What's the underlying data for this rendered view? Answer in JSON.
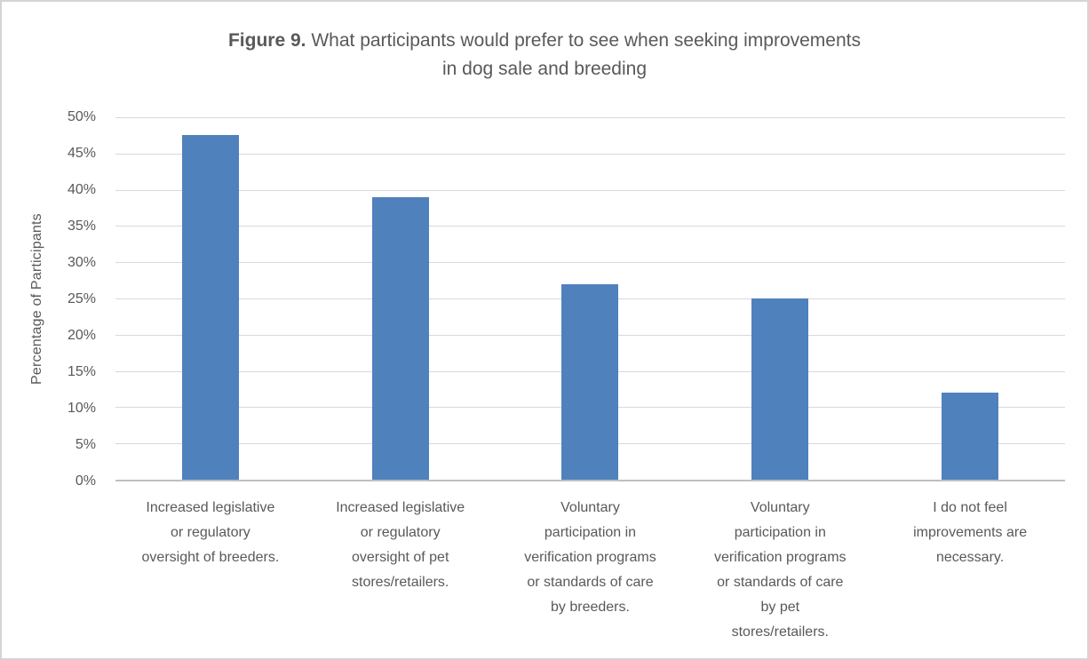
{
  "figure": {
    "label": "Figure 9.",
    "title_rest": " What participants would prefer to see when seeking improvements\nin dog sale and breeding"
  },
  "colors": {
    "text": "#595959",
    "gridline": "#d9d9d9",
    "axis": "#bfbfbf",
    "border": "#d4d4d4"
  },
  "chart_data": {
    "type": "bar",
    "title": "Figure 9. What participants would prefer to see when seeking improvements in dog sale and breeding",
    "xlabel": "",
    "ylabel": "Percentage of Participants",
    "unit": "%",
    "ylim": [
      0,
      50
    ],
    "ytick_step": 5,
    "yticks": [
      "50%",
      "45%",
      "40%",
      "35%",
      "30%",
      "25%",
      "20%",
      "15%",
      "10%",
      "5%",
      "0%"
    ],
    "grid": true,
    "legend": false,
    "bar_color": "#4f81bd",
    "categories": [
      "Increased legislative or regulatory oversight of breeders.",
      "Increased legislative or regulatory oversight of pet stores/retailers.",
      "Voluntary participation in verification programs or standards of care by breeders.",
      "Voluntary participation in verification programs or standards of care by pet stores/retailers.",
      "I do not feel improvements are necessary."
    ],
    "values": [
      47.5,
      39,
      27,
      25,
      12
    ],
    "x_label_lines": [
      [
        "Increased legislative",
        "or regulatory",
        "oversight of breeders."
      ],
      [
        "Increased legislative",
        "or regulatory",
        "oversight of pet",
        "stores/retailers."
      ],
      [
        "Voluntary",
        "participation in",
        "verification programs",
        "or standards of care",
        "by breeders."
      ],
      [
        "Voluntary",
        "participation in",
        "verification programs",
        "or standards of care",
        "by pet",
        "stores/retailers."
      ],
      [
        "I do not feel",
        "improvements are",
        "necessary."
      ]
    ]
  }
}
